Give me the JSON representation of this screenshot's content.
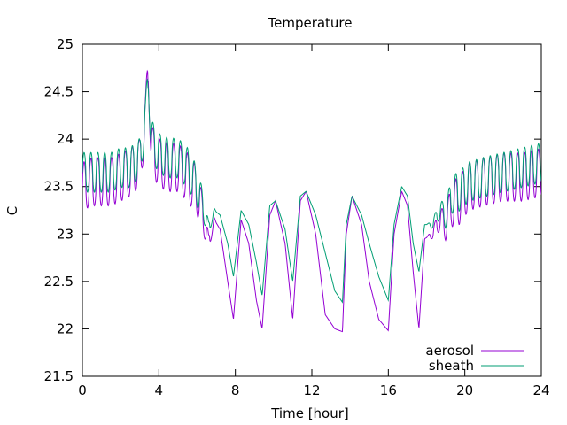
{
  "chart_data": {
    "type": "line",
    "title": "Temperature",
    "xlabel": "Time [hour]",
    "ylabel": "C",
    "xlim": [
      0,
      24
    ],
    "ylim": [
      21.5,
      25
    ],
    "xticks": [
      0,
      4,
      8,
      12,
      16,
      20,
      24
    ],
    "yticks": [
      21.5,
      22,
      22.5,
      23,
      23.5,
      24,
      24.5,
      25
    ],
    "legend_position": "bottom-right",
    "series": [
      {
        "name": "aerosol",
        "color": "#9400d3",
        "keypoints": [
          [
            0,
            23.5
          ],
          [
            0.5,
            23.55
          ],
          [
            1,
            23.55
          ],
          [
            1.5,
            23.55
          ],
          [
            2,
            23.6
          ],
          [
            2.5,
            23.65
          ],
          [
            3,
            23.75
          ],
          [
            3.3,
            24.2
          ],
          [
            3.45,
            24.78
          ],
          [
            3.6,
            23.9
          ],
          [
            4,
            23.75
          ],
          [
            4.5,
            23.7
          ],
          [
            5,
            23.7
          ],
          [
            5.5,
            23.6
          ],
          [
            6,
            23.45
          ],
          [
            6.3,
            23.2
          ],
          [
            6.6,
            22.9
          ],
          [
            6.9,
            23.15
          ],
          [
            7.2,
            23.05
          ],
          [
            7.6,
            22.5
          ],
          [
            7.9,
            22.1
          ],
          [
            8.3,
            23.15
          ],
          [
            8.7,
            22.9
          ],
          [
            9.1,
            22.3
          ],
          [
            9.4,
            22.0
          ],
          [
            9.8,
            23.2
          ],
          [
            10.1,
            23.35
          ],
          [
            10.6,
            22.9
          ],
          [
            11.0,
            22.1
          ],
          [
            11.4,
            23.35
          ],
          [
            11.7,
            23.45
          ],
          [
            12.2,
            23.0
          ],
          [
            12.7,
            22.15
          ],
          [
            13.2,
            22.0
          ],
          [
            13.6,
            21.97
          ],
          [
            13.8,
            23.0
          ],
          [
            14.1,
            23.4
          ],
          [
            14.6,
            23.1
          ],
          [
            15.0,
            22.5
          ],
          [
            15.5,
            22.1
          ],
          [
            16.0,
            21.98
          ],
          [
            16.3,
            23.0
          ],
          [
            16.7,
            23.45
          ],
          [
            17.0,
            23.3
          ],
          [
            17.3,
            22.6
          ],
          [
            17.6,
            22.0
          ],
          [
            17.9,
            22.95
          ],
          [
            18.3,
            23.0
          ],
          [
            18.7,
            23.15
          ],
          [
            19.0,
            23.1
          ],
          [
            19.3,
            23.3
          ],
          [
            19.7,
            23.35
          ],
          [
            20.2,
            23.5
          ],
          [
            21,
            23.55
          ],
          [
            22,
            23.6
          ],
          [
            23,
            23.6
          ],
          [
            24,
            23.65
          ]
        ]
      },
      {
        "name": "sheath",
        "color": "#009e73",
        "keypoints": [
          [
            0,
            23.65
          ],
          [
            0.5,
            23.65
          ],
          [
            1,
            23.65
          ],
          [
            1.5,
            23.65
          ],
          [
            2,
            23.7
          ],
          [
            2.5,
            23.7
          ],
          [
            3,
            23.8
          ],
          [
            3.3,
            24.2
          ],
          [
            3.45,
            24.68
          ],
          [
            3.6,
            24.0
          ],
          [
            4,
            23.85
          ],
          [
            4.5,
            23.8
          ],
          [
            5,
            23.8
          ],
          [
            5.5,
            23.7
          ],
          [
            6,
            23.5
          ],
          [
            6.3,
            23.3
          ],
          [
            6.6,
            23.05
          ],
          [
            6.9,
            23.25
          ],
          [
            7.2,
            23.2
          ],
          [
            7.6,
            22.9
          ],
          [
            7.9,
            22.55
          ],
          [
            8.3,
            23.25
          ],
          [
            8.7,
            23.1
          ],
          [
            9.1,
            22.7
          ],
          [
            9.4,
            22.35
          ],
          [
            9.8,
            23.3
          ],
          [
            10.1,
            23.35
          ],
          [
            10.6,
            23.05
          ],
          [
            11.0,
            22.5
          ],
          [
            11.4,
            23.4
          ],
          [
            11.7,
            23.45
          ],
          [
            12.2,
            23.2
          ],
          [
            12.7,
            22.8
          ],
          [
            13.2,
            22.4
          ],
          [
            13.6,
            22.28
          ],
          [
            13.8,
            23.1
          ],
          [
            14.1,
            23.4
          ],
          [
            14.6,
            23.2
          ],
          [
            15.0,
            22.9
          ],
          [
            15.5,
            22.55
          ],
          [
            16.0,
            22.3
          ],
          [
            16.3,
            23.1
          ],
          [
            16.7,
            23.5
          ],
          [
            17.0,
            23.4
          ],
          [
            17.3,
            22.9
          ],
          [
            17.6,
            22.6
          ],
          [
            17.9,
            23.1
          ],
          [
            18.3,
            23.1
          ],
          [
            18.7,
            23.25
          ],
          [
            19.0,
            23.2
          ],
          [
            19.3,
            23.4
          ],
          [
            19.7,
            23.45
          ],
          [
            20.2,
            23.55
          ],
          [
            21,
            23.6
          ],
          [
            22,
            23.65
          ],
          [
            23,
            23.7
          ],
          [
            24,
            23.75
          ]
        ]
      }
    ]
  }
}
